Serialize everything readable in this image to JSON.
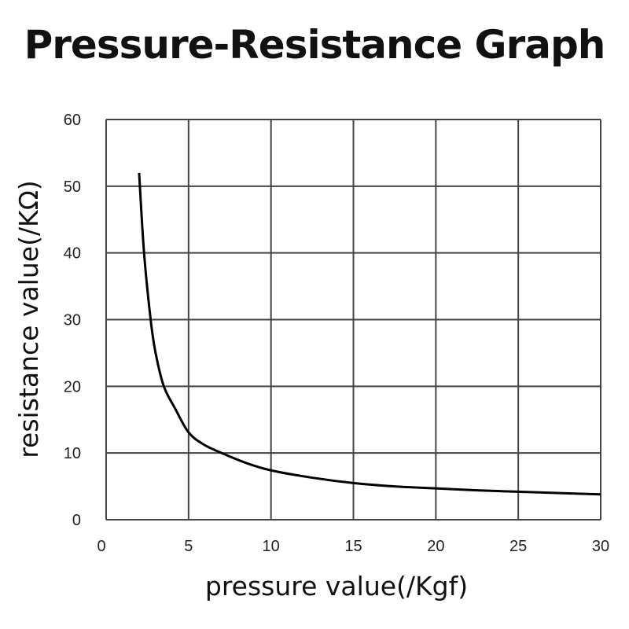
{
  "chart_data": {
    "type": "line",
    "title": "Pressure-Resistance Graph",
    "xlabel": "pressure value(/Kgf)",
    "ylabel": "resistance value(/KΩ)",
    "xlim": [
      0,
      30
    ],
    "ylim": [
      0,
      60
    ],
    "xticks": [
      "0",
      "5",
      "10",
      "15",
      "20",
      "25",
      "30"
    ],
    "yticks": [
      "0",
      "10",
      "20",
      "30",
      "40",
      "50",
      "60"
    ],
    "grid": true,
    "line_color": "#000000",
    "series": [
      {
        "x": [
          2.0,
          2.3,
          2.7,
          3.0,
          3.5,
          4.2,
          5.0,
          5.9,
          7.0,
          8.5,
          10,
          12.5,
          15,
          17.5,
          20,
          22.5,
          25,
          27.5,
          30
        ],
        "y": [
          52,
          40,
          30,
          25,
          20,
          16.6,
          13.1,
          11.3,
          10,
          8.5,
          7.4,
          6.3,
          5.5,
          5.0,
          4.7,
          4.4,
          4.2,
          4.0,
          3.8
        ]
      }
    ]
  }
}
